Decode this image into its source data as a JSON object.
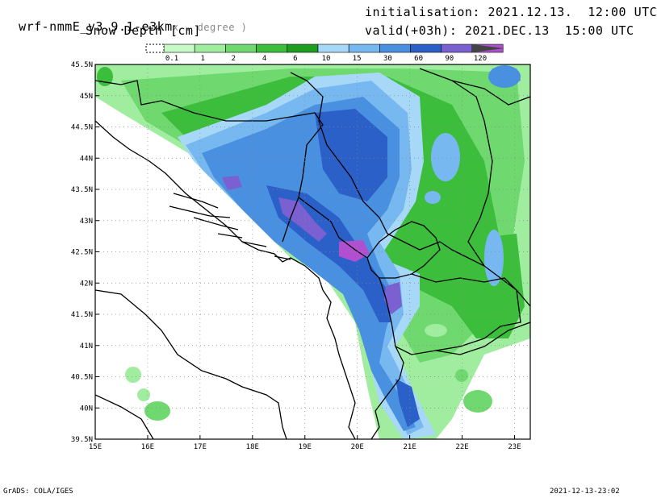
{
  "header": {
    "model": "wrf-nmmE_v3.9.1-e3km",
    "model_units": "x . degree )",
    "variable": "Snow Depth [cm]",
    "init": "initialisation: 2021.12.13.  12:00 UTC",
    "valid": "valid(+03h): 2021.DEC.13  15:00 UTC"
  },
  "colorbar": {
    "labels": [
      "0.1",
      "1",
      "2",
      "4",
      "6",
      "10",
      "15",
      "30",
      "60",
      "90",
      "120"
    ],
    "colors": [
      "#c8fac8",
      "#a0eda0",
      "#6fd86f",
      "#3cbe3c",
      "#1e9e1e",
      "#a8d8f8",
      "#78b8f0",
      "#4a90e0",
      "#2a60c8",
      "#7a60d0",
      "#b050d0"
    ]
  },
  "map": {
    "x_ticks": [
      "15E",
      "16E",
      "17E",
      "18E",
      "19E",
      "20E",
      "21E",
      "22E",
      "23E"
    ],
    "y_ticks": [
      "45.5N",
      "45N",
      "44.5N",
      "44N",
      "43.5N",
      "43N",
      "42.5N",
      "42N",
      "41.5N",
      "41N",
      "40.5N",
      "40N",
      "39.5N"
    ],
    "lon_range": [
      15,
      23.3
    ],
    "lat_range": [
      39.5,
      45.5
    ]
  },
  "footer": {
    "left": "GrADS: COLA/IGES",
    "right": "2021-12-13-23:02"
  }
}
